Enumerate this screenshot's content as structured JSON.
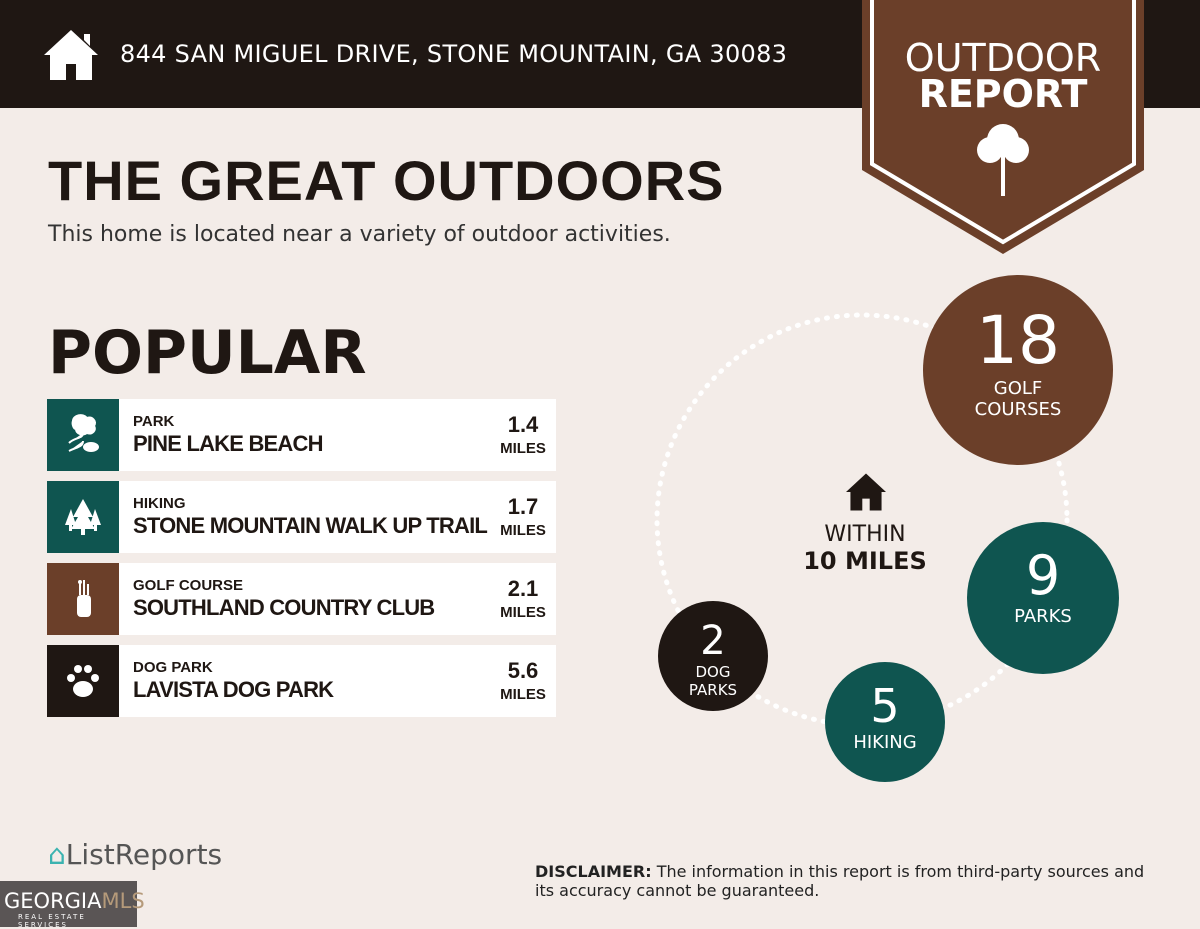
{
  "header": {
    "address": "844 SAN MIGUEL DRIVE, STONE MOUNTAIN, GA 30083",
    "icon": "house-icon"
  },
  "badge": {
    "line1": "OUTDOOR",
    "line2": "REPORT",
    "icon": "tree-icon"
  },
  "title": "THE GREAT OUTDOORS",
  "subtitle": "This home is located near a variety of outdoor activities.",
  "popular": {
    "heading": "POPULAR",
    "items": [
      {
        "category": "PARK",
        "name": "PINE LAKE BEACH",
        "distance": "1.4",
        "unit": "MILES",
        "icon": "park-icon",
        "color": "#0f5550"
      },
      {
        "category": "HIKING",
        "name": "STONE MOUNTAIN WALK UP TRAIL",
        "distance": "1.7",
        "unit": "MILES",
        "icon": "pine-trees-icon",
        "color": "#0f5550"
      },
      {
        "category": "GOLF COURSE",
        "name": "SOUTHLAND COUNTRY CLUB",
        "distance": "2.1",
        "unit": "MILES",
        "icon": "golf-bag-icon",
        "color": "#6b3f29"
      },
      {
        "category": "DOG PARK",
        "name": "LAVISTA DOG PARK",
        "distance": "5.6",
        "unit": "MILES",
        "icon": "paw-icon",
        "color": "#1f1713"
      }
    ]
  },
  "radius": {
    "line1": "WITHIN",
    "line2": "10 MILES"
  },
  "counts": [
    {
      "count": "18",
      "label1": "GOLF",
      "label2": "COURSES",
      "color": "#6b3f29"
    },
    {
      "count": "9",
      "label1": "PARKS",
      "label2": "",
      "color": "#0f5550"
    },
    {
      "count": "5",
      "label1": "HIKING",
      "label2": "",
      "color": "#0f5550"
    },
    {
      "count": "2",
      "label1": "DOG",
      "label2": "PARKS",
      "color": "#1f1713"
    }
  ],
  "footer": {
    "brand": "ListReports",
    "mls": "GEORGIAMLS",
    "mls_sub": "REAL ESTATE SERVICES",
    "disclaimer_label": "DISCLAIMER:",
    "disclaimer": " The information in this report is from third-party sources and its accuracy cannot be guaranteed."
  }
}
